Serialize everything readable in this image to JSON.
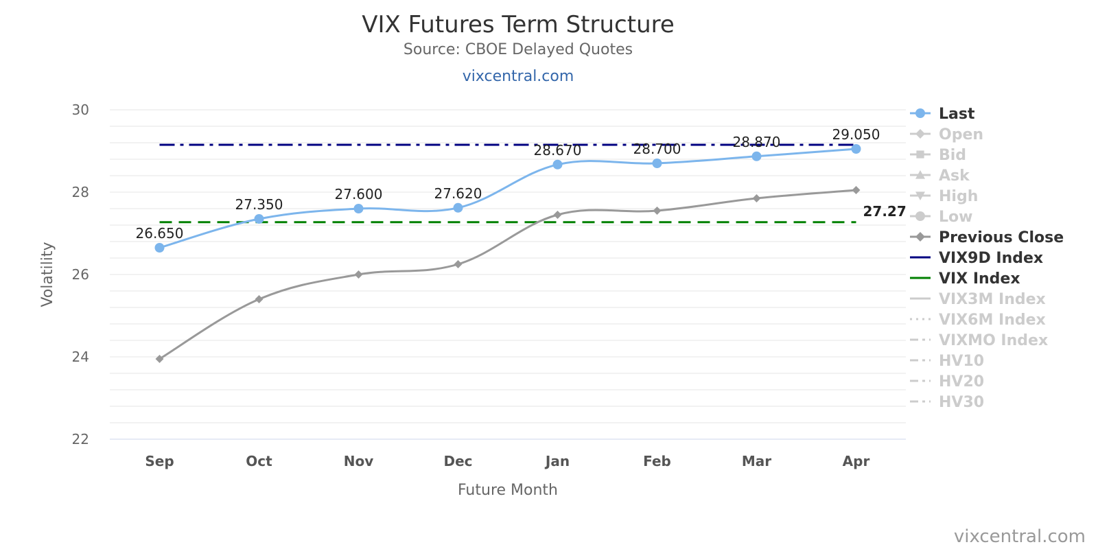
{
  "chart_data": {
    "type": "line",
    "title": "VIX Futures Term Structure",
    "subtitle": "Source: CBOE Delayed Quotes",
    "link": "vixcentral.com",
    "watermark": "vixcentral.com",
    "xlabel": "Future Month",
    "ylabel": "Volatility",
    "categories": [
      "Sep",
      "Oct",
      "Nov",
      "Dec",
      "Jan",
      "Feb",
      "Mar",
      "Apr"
    ],
    "ylim": [
      22,
      30
    ],
    "yticks": [
      22,
      24,
      26,
      28,
      30
    ],
    "grid": true,
    "legend_position": "right",
    "series": [
      {
        "name": "Last",
        "values": [
          26.65,
          27.35,
          27.6,
          27.62,
          28.67,
          28.7,
          28.87,
          29.05
        ],
        "labels": [
          "26.650",
          "27.350",
          "27.600",
          "27.620",
          "28.670",
          "28.700",
          "28.870",
          "29.050"
        ],
        "color": "#7cb5ec",
        "style": "solid",
        "marker": "circle",
        "active": true
      },
      {
        "name": "Previous Close",
        "values": [
          23.95,
          25.4,
          26.0,
          26.25,
          27.45,
          27.55,
          27.85,
          28.05
        ],
        "color": "#999999",
        "style": "solid",
        "marker": "diamond",
        "active": true
      },
      {
        "name": "VIX9D Index",
        "values": [
          29.15,
          29.15,
          29.15,
          29.15,
          29.15,
          29.15,
          29.15,
          29.15
        ],
        "color": "#000080",
        "style": "dashdot",
        "marker": "none",
        "active": true
      },
      {
        "name": "VIX Index",
        "values": [
          27.27,
          27.27,
          27.27,
          27.27,
          27.27,
          27.27,
          27.27,
          27.27
        ],
        "color": "#008000",
        "style": "dash",
        "marker": "none",
        "active": true,
        "end_label": "27.27"
      }
    ],
    "legend": [
      {
        "name": "Last",
        "color": "#7cb5ec",
        "marker": "circle",
        "line": "solid",
        "active": true
      },
      {
        "name": "Open",
        "color": "#cccccc",
        "marker": "diamond",
        "line": "solid",
        "active": false
      },
      {
        "name": "Bid",
        "color": "#cccccc",
        "marker": "square",
        "line": "solid",
        "active": false
      },
      {
        "name": "Ask",
        "color": "#cccccc",
        "marker": "triangle",
        "line": "solid",
        "active": false
      },
      {
        "name": "High",
        "color": "#cccccc",
        "marker": "triangle-down",
        "line": "solid",
        "active": false
      },
      {
        "name": "Low",
        "color": "#cccccc",
        "marker": "circle",
        "line": "solid",
        "active": false
      },
      {
        "name": "Previous Close",
        "color": "#999999",
        "marker": "diamond",
        "line": "solid",
        "active": true
      },
      {
        "name": "VIX9D Index",
        "color": "#000080",
        "marker": "none",
        "line": "solid",
        "active": true
      },
      {
        "name": "VIX Index",
        "color": "#008000",
        "marker": "none",
        "line": "solid",
        "active": true
      },
      {
        "name": "VIX3M Index",
        "color": "#cccccc",
        "marker": "none",
        "line": "solid",
        "active": false
      },
      {
        "name": "VIX6M Index",
        "color": "#cccccc",
        "marker": "none",
        "line": "dot",
        "active": false
      },
      {
        "name": "VIXMO Index",
        "color": "#cccccc",
        "marker": "none",
        "line": "dashdot",
        "active": false
      },
      {
        "name": "HV10",
        "color": "#cccccc",
        "marker": "none",
        "line": "dashdot",
        "active": false
      },
      {
        "name": "HV20",
        "color": "#cccccc",
        "marker": "none",
        "line": "dashdot",
        "active": false
      },
      {
        "name": "HV30",
        "color": "#cccccc",
        "marker": "none",
        "line": "dashdot",
        "active": false
      }
    ]
  }
}
